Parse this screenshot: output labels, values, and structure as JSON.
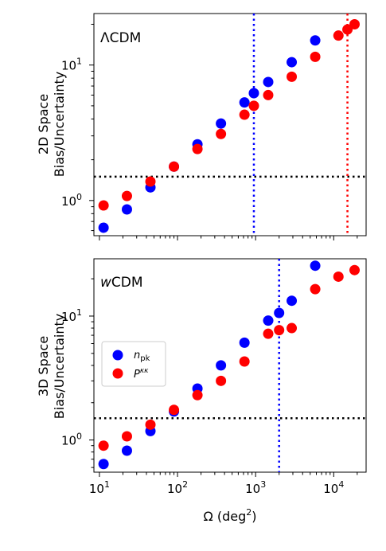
{
  "chart_data": [
    {
      "type": "scatter",
      "panel_label": "ΛCDM",
      "ylabel_line1": "2D Space",
      "ylabel_line2": "Bias/Uncertainty",
      "xscale": "log",
      "yscale": "log",
      "xlim": [
        8.5,
        26000
      ],
      "ylim": [
        0.55,
        24
      ],
      "x_ticks": [
        10,
        100,
        1000,
        10000
      ],
      "x_tick_labels_shown": false,
      "y_ticks": [
        1,
        10
      ],
      "y_tick_labels": [
        "10^0",
        "10^1"
      ],
      "hline": {
        "y": 1.5,
        "color": "#000000",
        "style": "dotted"
      },
      "vlines": [
        {
          "x": 950,
          "color": "#0000ff",
          "style": "dotted"
        },
        {
          "x": 15000,
          "color": "#ff0000",
          "style": "dotted"
        }
      ],
      "series": [
        {
          "name": "n_pk",
          "color": "#0000ff",
          "x": [
            11.3,
            22.5,
            45,
            90,
            180,
            360,
            720,
            950,
            1450,
            2900,
            5800
          ],
          "y": [
            0.63,
            0.86,
            1.25,
            1.78,
            2.6,
            3.7,
            5.3,
            6.2,
            7.5,
            10.5,
            15.2
          ]
        },
        {
          "name": "P^κκ",
          "color": "#ff0000",
          "x": [
            11.3,
            22.5,
            45,
            90,
            180,
            360,
            720,
            950,
            1450,
            2900,
            5800,
            11500,
            15000,
            18500
          ],
          "y": [
            0.92,
            1.08,
            1.38,
            1.78,
            2.4,
            3.1,
            4.3,
            5.0,
            6.0,
            8.2,
            11.5,
            16.5,
            18.3,
            20.0
          ]
        }
      ]
    },
    {
      "type": "scatter",
      "panel_label": "wCDM",
      "ylabel_line1": "3D Space",
      "ylabel_line2": "Bias/Uncertainty",
      "xlabel": "Ω (deg²)",
      "xscale": "log",
      "yscale": "log",
      "xlim": [
        8.5,
        26000
      ],
      "ylim": [
        0.55,
        29
      ],
      "x_ticks": [
        10,
        100,
        1000,
        10000
      ],
      "x_tick_labels": [
        "10^1",
        "10^2",
        "10^3",
        "10^4"
      ],
      "y_ticks": [
        1,
        10
      ],
      "y_tick_labels": [
        "10^0",
        "10^1"
      ],
      "hline": {
        "y": 1.5,
        "color": "#000000",
        "style": "dotted"
      },
      "vlines": [
        {
          "x": 2000,
          "color": "#0000ff",
          "style": "dotted"
        }
      ],
      "legend": {
        "position": "middle-left",
        "entries": [
          "n_pk",
          "P^κκ"
        ]
      },
      "series": [
        {
          "name": "n_pk",
          "color": "#0000ff",
          "x": [
            11.3,
            22.5,
            45,
            90,
            180,
            360,
            720,
            1450,
            2000,
            2900,
            5800
          ],
          "y": [
            0.64,
            0.82,
            1.18,
            1.7,
            2.6,
            4.0,
            6.1,
            9.2,
            10.6,
            13.3,
            25.5
          ]
        },
        {
          "name": "P^κκ",
          "color": "#ff0000",
          "x": [
            11.3,
            22.5,
            45,
            90,
            180,
            360,
            720,
            1450,
            2000,
            2900,
            5800,
            11500,
            18500
          ],
          "y": [
            0.9,
            1.07,
            1.33,
            1.75,
            2.3,
            3.0,
            4.3,
            7.2,
            7.7,
            8.0,
            16.5,
            20.8,
            23.5
          ]
        }
      ]
    }
  ],
  "legend_labels": {
    "n_pk_main": "n",
    "n_pk_sub": "pk",
    "pkk_main": "P",
    "pkk_sup": "κκ"
  },
  "xlabel_main": "Ω (deg",
  "xlabel_sup": "2",
  "xlabel_end": ")",
  "panel1_label": "ΛCDM",
  "panel2_label_italic": "w",
  "panel2_label_rest": "CDM"
}
